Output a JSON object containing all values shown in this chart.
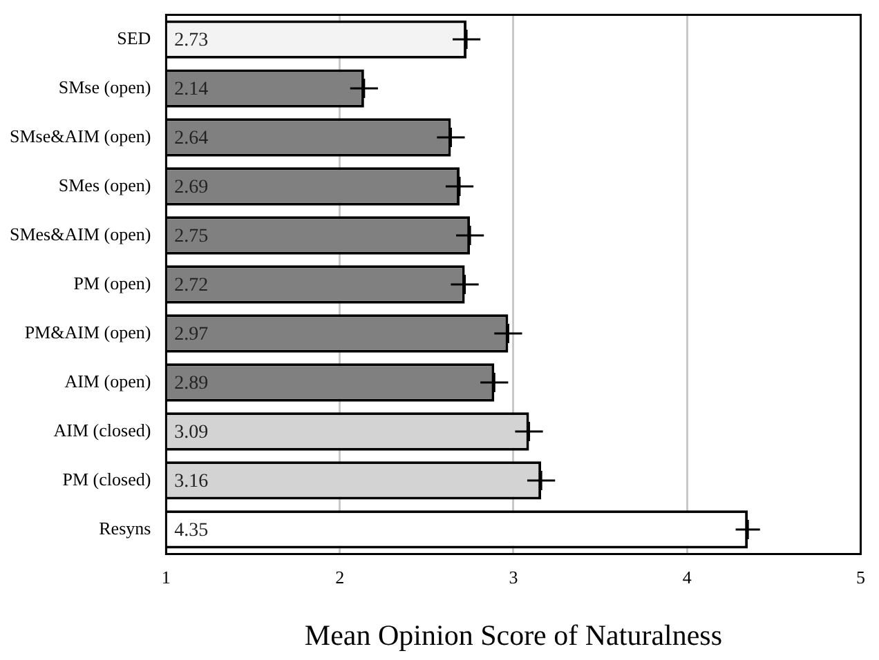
{
  "chart_data": {
    "type": "bar",
    "orientation": "horizontal",
    "xlabel": "Mean Opinion Score of Naturalness",
    "categories": [
      "SED",
      "SMse (open)",
      "SMse&AIM (open)",
      "SMes (open)",
      "SMes&AIM (open)",
      "PM (open)",
      "PM&AIM (open)",
      "AIM (open)",
      "AIM (closed)",
      "PM (closed)",
      "Resyns"
    ],
    "values": [
      2.73,
      2.14,
      2.64,
      2.69,
      2.75,
      2.72,
      2.97,
      2.89,
      3.09,
      3.16,
      4.35
    ],
    "colors": [
      "#f3f3f3",
      "#808080",
      "#808080",
      "#808080",
      "#808080",
      "#808080",
      "#808080",
      "#808080",
      "#d3d3d3",
      "#d3d3d3",
      "#ffffff"
    ],
    "errors": [
      0.08,
      0.08,
      0.08,
      0.08,
      0.08,
      0.08,
      0.08,
      0.08,
      0.08,
      0.08,
      0.07
    ],
    "xlim": [
      1,
      5
    ],
    "xticks": [
      1,
      2,
      3,
      4,
      5
    ],
    "grid": "x",
    "data_labels": true,
    "legend": false
  }
}
